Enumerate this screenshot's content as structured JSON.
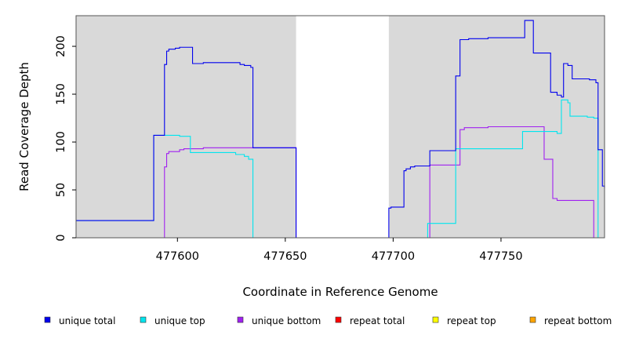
{
  "chart_data": {
    "type": "line",
    "title": "",
    "xlabel": "Coordinate in Reference Genome",
    "ylabel": "Read Coverage Depth",
    "xlim": [
      477553,
      477798
    ],
    "ylim": [
      0,
      232
    ],
    "xticks": [
      477600,
      477650,
      477700,
      477750
    ],
    "yticks": [
      0,
      50,
      100,
      150,
      200
    ],
    "shaded_regions": [
      {
        "x_start": 477553,
        "x_end": 477655
      },
      {
        "x_start": 477698,
        "x_end": 477798
      }
    ],
    "series": [
      {
        "name": "unique total",
        "color": "#0000ee",
        "points": [
          [
            477553,
            18
          ],
          [
            477589,
            18
          ],
          [
            477589,
            107
          ],
          [
            477594,
            107
          ],
          [
            477594,
            181
          ],
          [
            477595,
            181
          ],
          [
            477595,
            195
          ],
          [
            477596,
            195
          ],
          [
            477596,
            197
          ],
          [
            477599,
            197
          ],
          [
            477599,
            198
          ],
          [
            477601,
            198
          ],
          [
            477601,
            199
          ],
          [
            477607,
            199
          ],
          [
            477607,
            182
          ],
          [
            477612,
            182
          ],
          [
            477612,
            183
          ],
          [
            477629,
            183
          ],
          [
            477629,
            181
          ],
          [
            477631,
            181
          ],
          [
            477631,
            180
          ],
          [
            477634,
            180
          ],
          [
            477634,
            178
          ],
          [
            477635,
            178
          ],
          [
            477635,
            94
          ],
          [
            477655,
            94
          ],
          [
            477655,
            0
          ],
          [
            477698,
            0
          ],
          [
            477698,
            31
          ],
          [
            477699,
            31
          ],
          [
            477699,
            32
          ],
          [
            477705,
            32
          ],
          [
            477705,
            70
          ],
          [
            477706,
            70
          ],
          [
            477706,
            72
          ],
          [
            477708,
            72
          ],
          [
            477708,
            74
          ],
          [
            477710,
            74
          ],
          [
            477710,
            75
          ],
          [
            477717,
            75
          ],
          [
            477717,
            91
          ],
          [
            477729,
            91
          ],
          [
            477729,
            169
          ],
          [
            477731,
            169
          ],
          [
            477731,
            207
          ],
          [
            477735,
            207
          ],
          [
            477735,
            208
          ],
          [
            477744,
            208
          ],
          [
            477744,
            209
          ],
          [
            477761,
            209
          ],
          [
            477761,
            227
          ],
          [
            477765,
            227
          ],
          [
            477765,
            193
          ],
          [
            477773,
            193
          ],
          [
            477773,
            152
          ],
          [
            477776,
            152
          ],
          [
            477776,
            149
          ],
          [
            477778,
            149
          ],
          [
            477778,
            147
          ],
          [
            477779,
            147
          ],
          [
            477779,
            182
          ],
          [
            477781,
            182
          ],
          [
            477781,
            180
          ],
          [
            477783,
            180
          ],
          [
            477783,
            166
          ],
          [
            477791,
            166
          ],
          [
            477791,
            165
          ],
          [
            477794,
            165
          ],
          [
            477794,
            162
          ],
          [
            477795,
            162
          ],
          [
            477795,
            92
          ],
          [
            477797,
            92
          ],
          [
            477797,
            54
          ],
          [
            477798,
            54
          ],
          [
            477798,
            52
          ]
        ]
      },
      {
        "name": "unique top",
        "color": "#00e5ee",
        "points": [
          [
            477553,
            18
          ],
          [
            477589,
            18
          ],
          [
            477589,
            107
          ],
          [
            477601,
            107
          ],
          [
            477601,
            106
          ],
          [
            477606,
            106
          ],
          [
            477606,
            89
          ],
          [
            477627,
            89
          ],
          [
            477627,
            87
          ],
          [
            477631,
            87
          ],
          [
            477631,
            85
          ],
          [
            477633,
            85
          ],
          [
            477633,
            82
          ],
          [
            477635,
            82
          ],
          [
            477635,
            0
          ],
          [
            477716,
            0
          ],
          [
            477716,
            15
          ],
          [
            477729,
            15
          ],
          [
            477729,
            93
          ],
          [
            477760,
            93
          ],
          [
            477760,
            111
          ],
          [
            477776,
            111
          ],
          [
            477776,
            109
          ],
          [
            477778,
            109
          ],
          [
            477778,
            144
          ],
          [
            477781,
            144
          ],
          [
            477781,
            141
          ],
          [
            477782,
            141
          ],
          [
            477782,
            127
          ],
          [
            477790,
            127
          ],
          [
            477790,
            126
          ],
          [
            477793,
            126
          ],
          [
            477793,
            125
          ],
          [
            477795,
            125
          ],
          [
            477795,
            0
          ],
          [
            477798,
            0
          ]
        ]
      },
      {
        "name": "unique bottom",
        "color": "#a020f0",
        "points": [
          [
            477553,
            0
          ],
          [
            477594,
            0
          ],
          [
            477594,
            74
          ],
          [
            477595,
            74
          ],
          [
            477595,
            88
          ],
          [
            477596,
            88
          ],
          [
            477596,
            90
          ],
          [
            477601,
            90
          ],
          [
            477601,
            92
          ],
          [
            477603,
            92
          ],
          [
            477603,
            93
          ],
          [
            477612,
            93
          ],
          [
            477612,
            94
          ],
          [
            477655,
            94
          ],
          [
            477655,
            0
          ],
          [
            477717,
            0
          ],
          [
            477717,
            76
          ],
          [
            477731,
            76
          ],
          [
            477731,
            113
          ],
          [
            477733,
            113
          ],
          [
            477733,
            115
          ],
          [
            477744,
            115
          ],
          [
            477744,
            116
          ],
          [
            477770,
            116
          ],
          [
            477770,
            82
          ],
          [
            477774,
            82
          ],
          [
            477774,
            41
          ],
          [
            477776,
            41
          ],
          [
            477776,
            39
          ],
          [
            477793,
            39
          ],
          [
            477793,
            0
          ],
          [
            477798,
            0
          ]
        ]
      },
      {
        "name": "repeat total",
        "color": "#ff0000",
        "points": [
          [
            477553,
            0
          ],
          [
            477798,
            0
          ]
        ]
      },
      {
        "name": "repeat top",
        "color": "#ffff00",
        "points": [
          [
            477553,
            0
          ],
          [
            477798,
            0
          ]
        ]
      },
      {
        "name": "repeat bottom",
        "color": "#ffa500",
        "points": [
          [
            477553,
            0
          ],
          [
            477798,
            0
          ]
        ]
      }
    ]
  }
}
